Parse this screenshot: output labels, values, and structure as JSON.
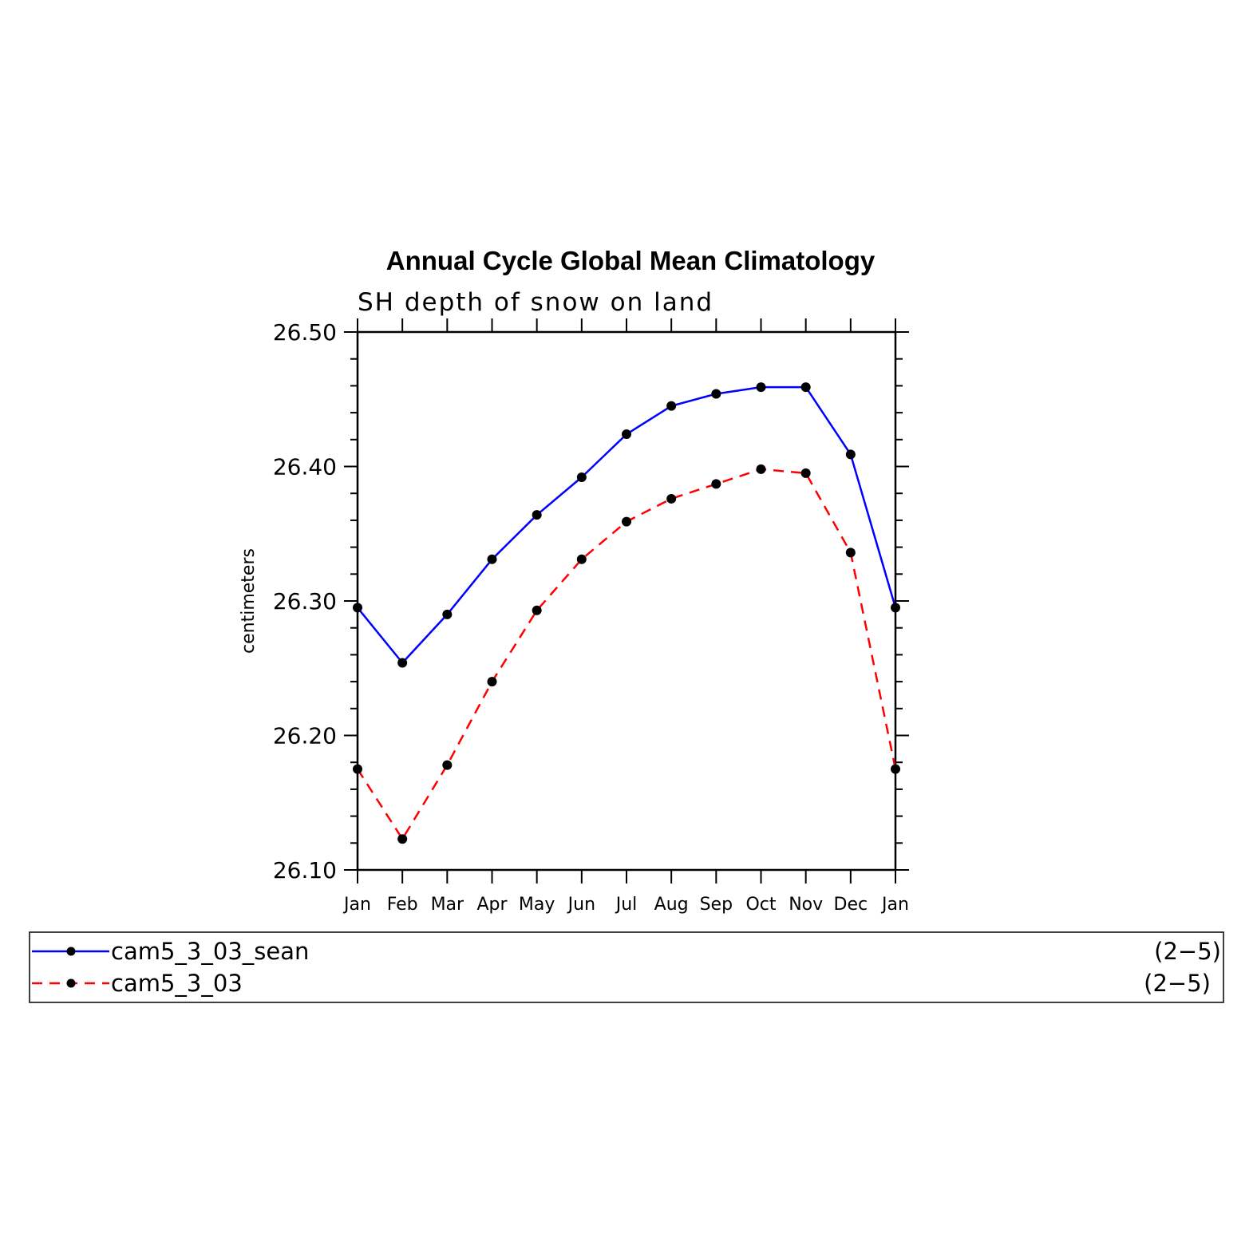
{
  "chart_data": {
    "type": "line",
    "title": "Annual Cycle Global Mean Climatology",
    "subtitle": "SH depth of snow on land",
    "ylabel": "centimeters",
    "xlabel": "",
    "categories": [
      "Jan",
      "Feb",
      "Mar",
      "Apr",
      "May",
      "Jun",
      "Jul",
      "Aug",
      "Sep",
      "Oct",
      "Nov",
      "Dec",
      "Jan"
    ],
    "ylim": [
      26.1,
      26.5
    ],
    "yticks": [
      "26.10",
      "26.20",
      "26.30",
      "26.40",
      "26.50"
    ],
    "series": [
      {
        "name": "cam5_3_03_sean",
        "range": "(2−5)",
        "color": "#0000ff",
        "dash": "solid",
        "values": [
          26.295,
          26.254,
          26.29,
          26.331,
          26.364,
          26.392,
          26.424,
          26.445,
          26.454,
          26.459,
          26.459,
          26.409,
          26.295
        ]
      },
      {
        "name": "cam5_3_03",
        "range": "(2−5)",
        "color": "#ff0000",
        "dash": "dashed",
        "values": [
          26.175,
          26.123,
          26.178,
          26.24,
          26.293,
          26.331,
          26.359,
          26.376,
          26.387,
          26.398,
          26.395,
          26.336,
          26.175
        ]
      }
    ],
    "legend": "bottom",
    "grid": false
  }
}
